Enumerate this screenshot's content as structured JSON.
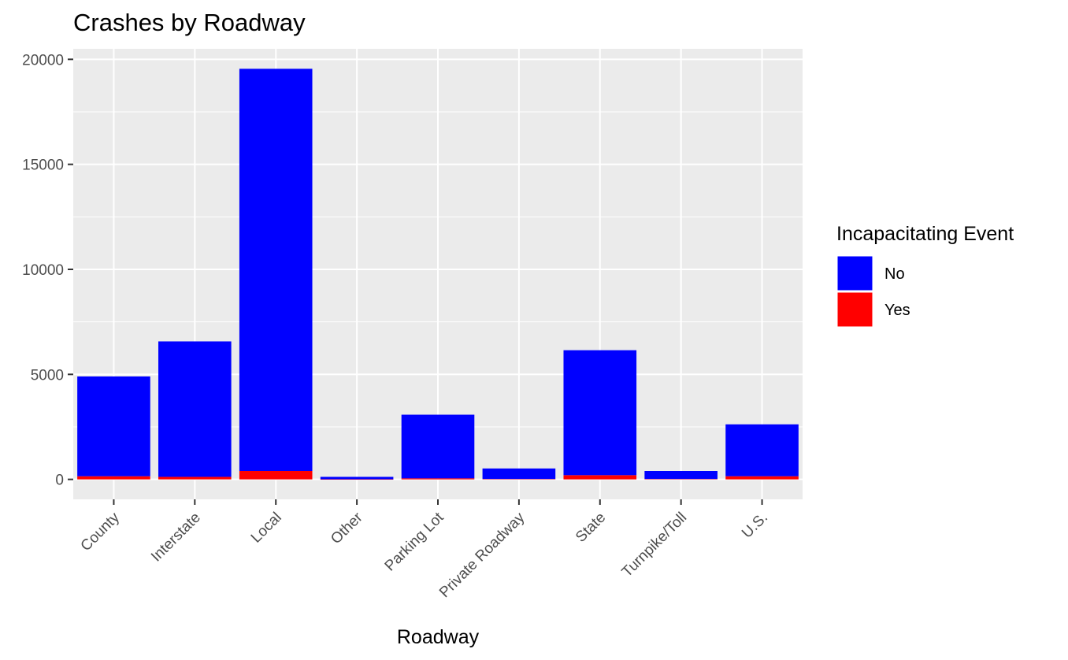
{
  "chart_data": {
    "type": "bar",
    "stacked": true,
    "title": "Crashes by Roadway",
    "xlabel": "Roadway",
    "ylabel": "",
    "categories": [
      "County",
      "Interstate",
      "Local",
      "Other",
      "Parking Lot",
      "Private Roadway",
      "State",
      "Turnpike/Toll",
      "U.S."
    ],
    "series": [
      {
        "name": "No",
        "color": "#0000FF",
        "values": [
          4750,
          6450,
          19150,
          115,
          3030,
          500,
          5950,
          380,
          2470
        ]
      },
      {
        "name": "Yes",
        "color": "#FF0000",
        "values": [
          150,
          120,
          400,
          5,
          50,
          20,
          200,
          20,
          150
        ]
      }
    ],
    "ylim": [
      -950,
      20500
    ],
    "yticks": [
      0,
      5000,
      10000,
      15000,
      20000
    ],
    "ytick_labels": [
      "0",
      "5000",
      "10000",
      "15000",
      "20000"
    ],
    "grid": true,
    "legend": {
      "title": "Incapacitating Event",
      "placement": "right",
      "items": [
        "No",
        "Yes"
      ]
    }
  }
}
